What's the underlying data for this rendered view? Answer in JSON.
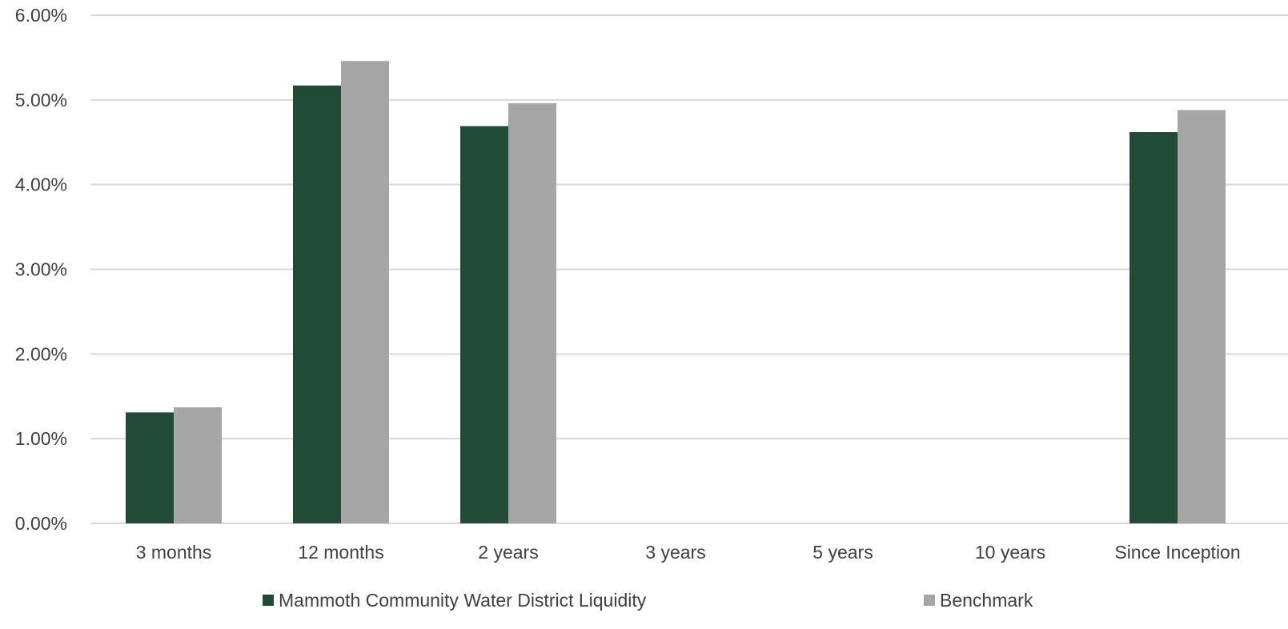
{
  "chart_data": {
    "type": "bar",
    "title": "",
    "xlabel": "",
    "ylabel": "",
    "categories": [
      "3 months",
      "12 months",
      "2 years",
      "3 years",
      "5 years",
      "10 years",
      "Since Inception"
    ],
    "series": [
      {
        "name": "Mammoth Community Water District Liquidity",
        "color": "#214b37",
        "values": [
          1.31,
          5.17,
          4.69,
          null,
          null,
          null,
          4.62
        ]
      },
      {
        "name": "Benchmark",
        "color": "#a6a6a6",
        "values": [
          1.37,
          5.46,
          4.96,
          null,
          null,
          null,
          4.88
        ]
      }
    ],
    "ylim": [
      0,
      6
    ],
    "yticks": [
      0,
      1,
      2,
      3,
      4,
      5,
      6
    ],
    "ytick_labels": [
      "0.00%",
      "1.00%",
      "2.00%",
      "3.00%",
      "4.00%",
      "5.00%",
      "6.00%"
    ],
    "grid": true,
    "legend_position": "bottom",
    "colors": {
      "gridline": "#d9d9d9",
      "text": "#404040"
    }
  }
}
